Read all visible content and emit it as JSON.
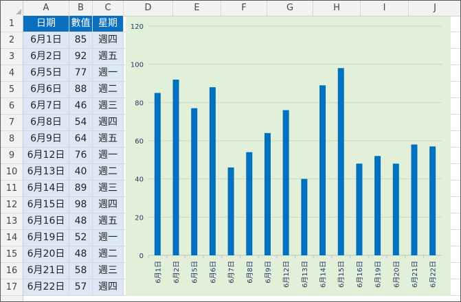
{
  "columns": [
    "A",
    "B",
    "C",
    "D",
    "E",
    "F",
    "G",
    "H",
    "I",
    "J"
  ],
  "rows": [
    "1",
    "2",
    "3",
    "4",
    "5",
    "6",
    "7",
    "8",
    "9",
    "10",
    "11",
    "12",
    "13",
    "14",
    "15",
    "16",
    "17"
  ],
  "table": {
    "headers": [
      "日期",
      "數值",
      "星期"
    ],
    "rows": [
      [
        "6月1日",
        "85",
        "週四"
      ],
      [
        "6月2日",
        "92",
        "週五"
      ],
      [
        "6月5日",
        "77",
        "週一"
      ],
      [
        "6月6日",
        "88",
        "週二"
      ],
      [
        "6月7日",
        "46",
        "週三"
      ],
      [
        "6月8日",
        "54",
        "週四"
      ],
      [
        "6月9日",
        "64",
        "週五"
      ],
      [
        "6月12日",
        "76",
        "週一"
      ],
      [
        "6月13日",
        "40",
        "週二"
      ],
      [
        "6月14日",
        "89",
        "週三"
      ],
      [
        "6月15日",
        "98",
        "週四"
      ],
      [
        "6月16日",
        "48",
        "週五"
      ],
      [
        "6月19日",
        "52",
        "週一"
      ],
      [
        "6月20日",
        "48",
        "週二"
      ],
      [
        "6月21日",
        "58",
        "週三"
      ],
      [
        "6月22日",
        "57",
        "週四"
      ]
    ]
  },
  "chart_data": {
    "type": "bar",
    "categories": [
      "6月1日",
      "6月2日",
      "6月5日",
      "6月6日",
      "6月7日",
      "6月8日",
      "6月9日",
      "6月12日",
      "6月13日",
      "6月14日",
      "6月15日",
      "6月16日",
      "6月19日",
      "6月20日",
      "6月21日",
      "6月22日"
    ],
    "values": [
      85,
      92,
      77,
      88,
      46,
      54,
      64,
      76,
      40,
      89,
      98,
      48,
      52,
      48,
      58,
      57
    ],
    "ylim": [
      0,
      120
    ],
    "yticks": [
      "0",
      "20",
      "40",
      "60",
      "80",
      "100",
      "120"
    ],
    "grid": true,
    "colors": {
      "bar": "#0070c0",
      "background": "#e2efd9",
      "grid": "#c9d9bf",
      "axis_text": "#1f3864"
    }
  }
}
